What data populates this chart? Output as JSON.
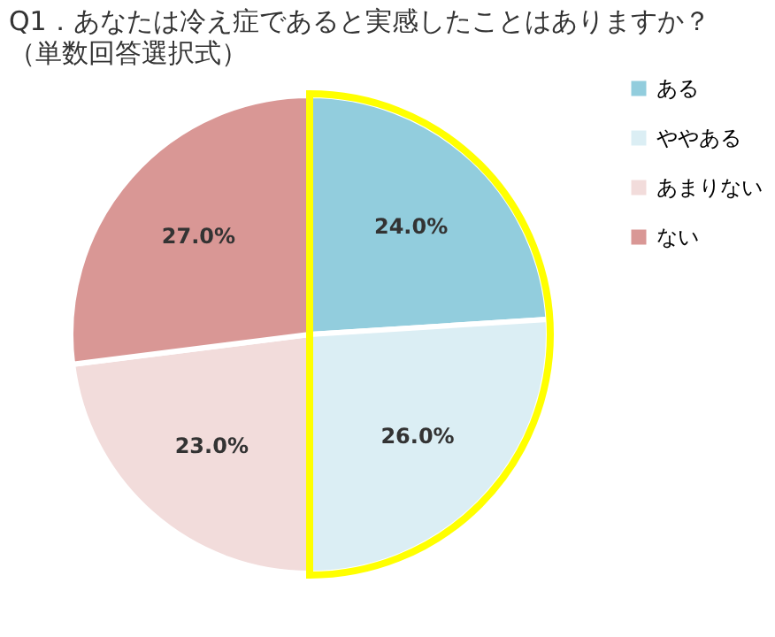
{
  "chart_data": {
    "type": "pie",
    "title": "Q1．あなたは冷え症であると実感したことはありますか？",
    "subtitle": "（単数回答選択式）",
    "categories": [
      "ある",
      "ややある",
      "あまりない",
      "ない"
    ],
    "values": [
      24.0,
      26.0,
      23.0,
      27.0
    ],
    "colors": [
      "#92cddd",
      "#dbeef4",
      "#f2dcdb",
      "#d99795"
    ],
    "value_labels": [
      "24.0%",
      "26.0%",
      "23.0%",
      "27.0%"
    ],
    "legend": "right"
  }
}
